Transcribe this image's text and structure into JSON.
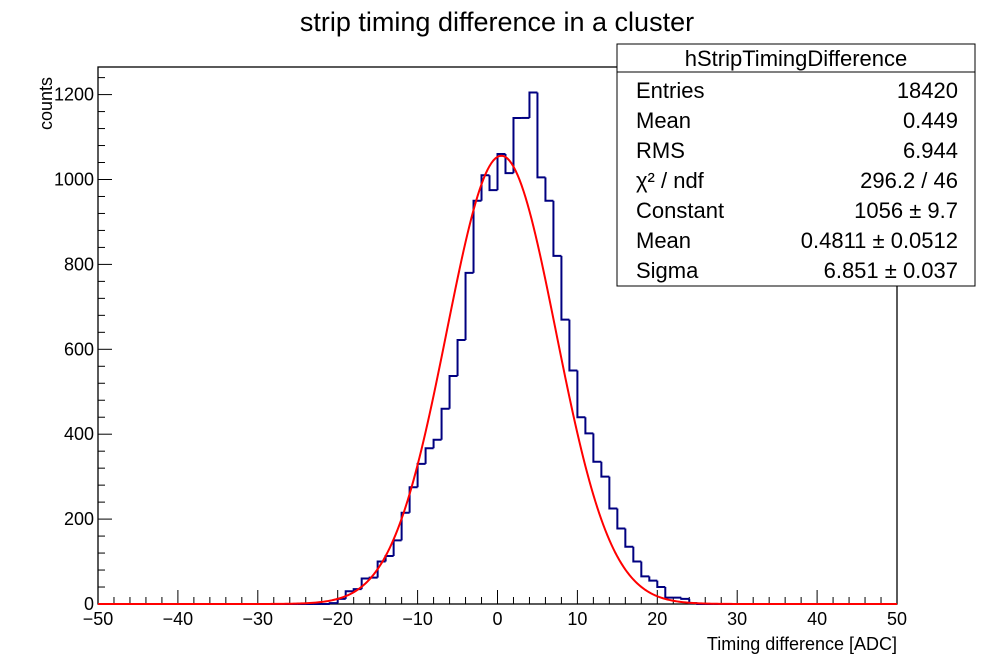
{
  "chart_data": {
    "type": "bar",
    "title": "strip timing difference in a cluster",
    "xlabel": "Timing difference [ADC]",
    "ylabel": "counts",
    "xlim": [
      -50,
      50
    ],
    "ylim": [
      0,
      1265
    ],
    "x_ticks": [
      "−50",
      "−40",
      "−30",
      "−20",
      "−10",
      "0",
      "10",
      "20",
      "30",
      "40",
      "50"
    ],
    "y_ticks": [
      "0",
      "200",
      "400",
      "600",
      "800",
      "1000",
      "1200"
    ],
    "y_tick_values": [
      0,
      200,
      400,
      600,
      800,
      1000,
      1200
    ],
    "bin_edges_start": -50,
    "bin_width": 1,
    "bin_values": [
      0,
      0,
      0,
      0,
      0,
      0,
      0,
      0,
      0,
      0,
      0,
      0,
      0,
      0,
      0,
      0,
      0,
      0,
      0,
      0,
      0,
      0,
      0,
      0,
      0,
      0,
      0,
      0,
      0,
      2,
      12,
      30,
      35,
      60,
      62,
      100,
      113,
      150,
      215,
      275,
      330,
      367,
      387,
      460,
      537,
      622,
      780,
      950,
      1010,
      975,
      1060,
      1015,
      1145,
      1145,
      1205,
      1005,
      950,
      820,
      670,
      550,
      440,
      402,
      335,
      300,
      225,
      178,
      135,
      100,
      65,
      55,
      40,
      15,
      15,
      12,
      2,
      0,
      0,
      0,
      0,
      0,
      0,
      0,
      0,
      0,
      0,
      0,
      0,
      0,
      0,
      0,
      0,
      0,
      0,
      0,
      0,
      0,
      0,
      0,
      0,
      0
    ],
    "histogram_color": "#000080",
    "fit": {
      "function": "gaus",
      "constant": 1056,
      "mean": 0.4811,
      "sigma": 6.851,
      "color": "#ff0000"
    },
    "grid": false,
    "legend_placement": "top-right"
  },
  "stats_box": {
    "name": "hStripTimingDifference",
    "rows": [
      {
        "label": "Entries",
        "value": "18420"
      },
      {
        "label": "Mean",
        "value": "0.449"
      },
      {
        "label": "RMS",
        "value": "6.944"
      },
      {
        "label": "χ² / ndf",
        "value": "296.2 / 46"
      },
      {
        "label": "Constant",
        "value": "1056 ± 9.7"
      },
      {
        "label": "Mean",
        "value": "0.4811 ± 0.0512"
      },
      {
        "label": "Sigma",
        "value": "6.851 ± 0.037"
      }
    ]
  }
}
